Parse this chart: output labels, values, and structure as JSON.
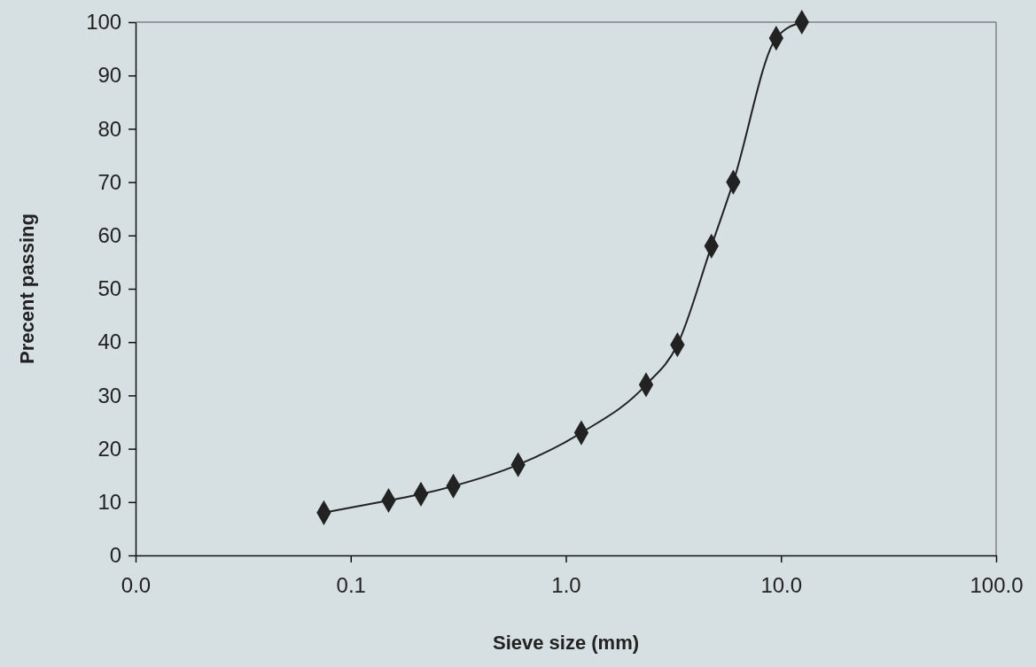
{
  "chart_data": {
    "type": "line",
    "xlabel": "Sieve size (mm)",
    "ylabel": "Precent passing",
    "log": "x",
    "grid": false,
    "marker": "diamond",
    "line_style": "solid",
    "x": [
      0.075,
      0.15,
      0.212,
      0.3,
      0.6,
      1.18,
      2.36,
      3.3,
      4.75,
      6.0,
      9.5,
      12.5
    ],
    "series": [
      {
        "color": "#222222",
        "values": [
          8,
          10.3,
          11.5,
          13,
          17,
          23,
          32,
          39.5,
          58,
          70,
          97,
          100
        ]
      }
    ],
    "xlim": [
      0.01,
      100
    ],
    "xticks": [
      {
        "value": 0.01,
        "label": "0.0"
      },
      {
        "value": 0.1,
        "label": "0.1"
      },
      {
        "value": 1,
        "label": "1.0"
      },
      {
        "value": 10,
        "label": "10.0"
      },
      {
        "value": 100,
        "label": "100.0"
      }
    ],
    "ylim": [
      0,
      100
    ],
    "yticks": [
      0,
      10,
      20,
      30,
      40,
      50,
      60,
      70,
      80,
      90,
      100
    ]
  }
}
